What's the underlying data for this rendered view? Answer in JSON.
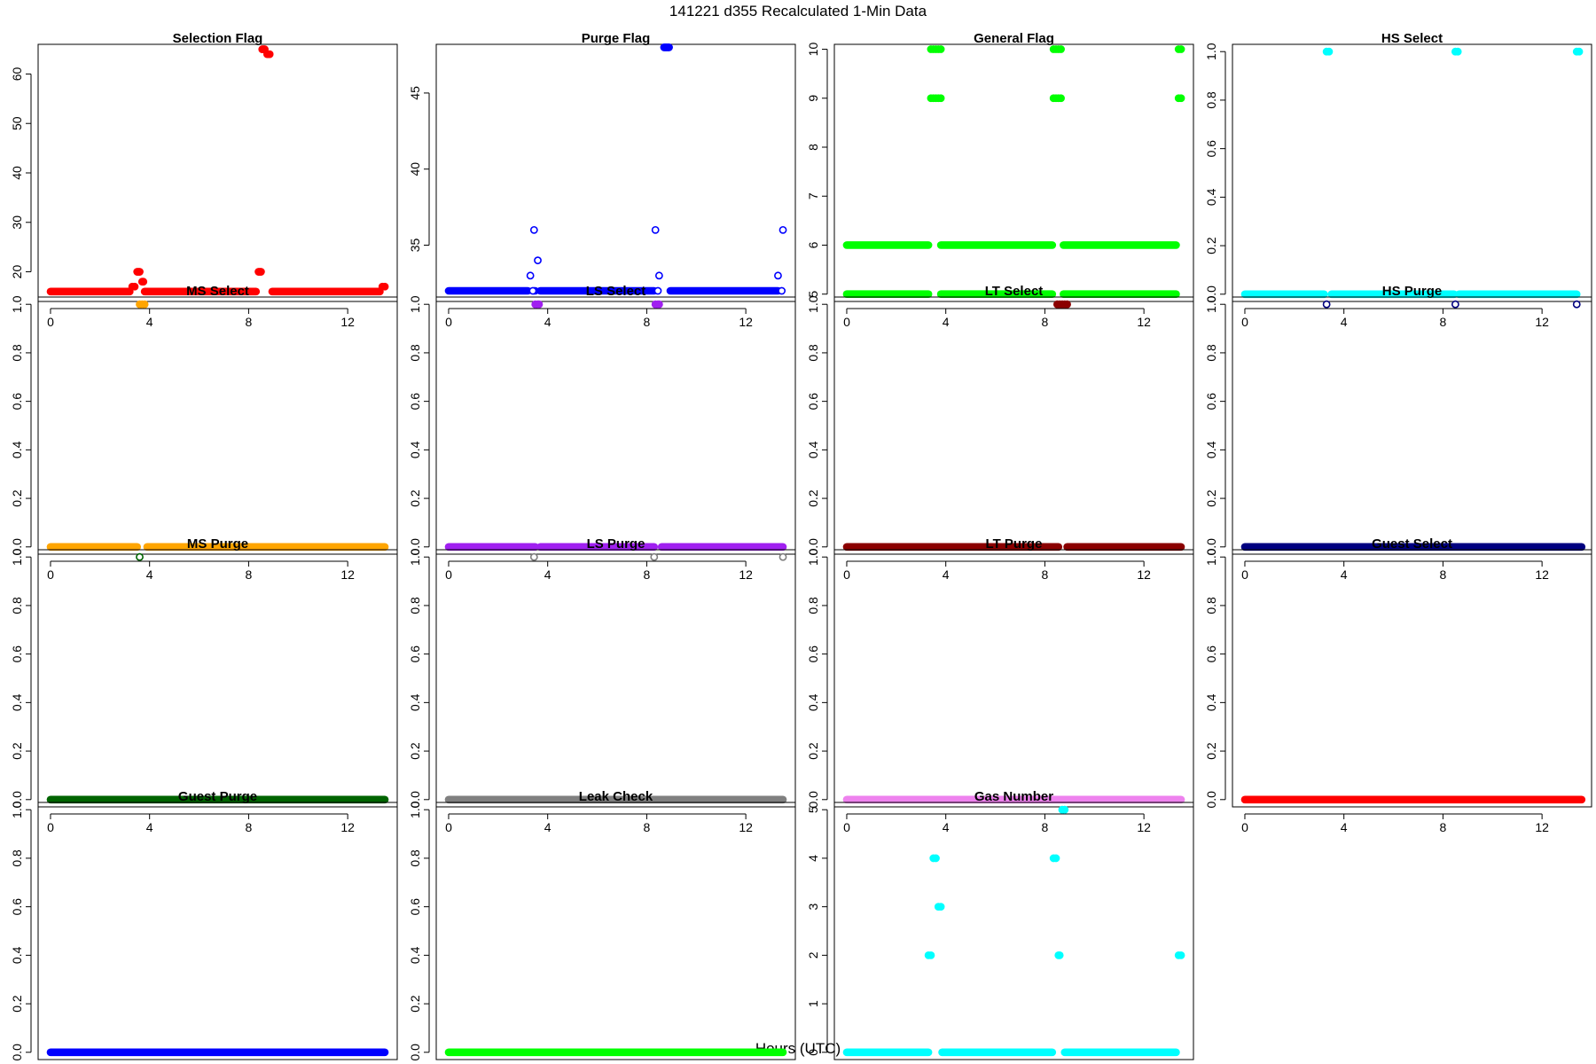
{
  "figure": {
    "suptitle": "141221   d355   Recalculated 1-Min Data",
    "xlabel": "Hours (UTC)"
  },
  "chart_data": [
    {
      "type": "scatter",
      "title": "Selection Flag",
      "color": "#ff0000",
      "fill": true,
      "xlim": [
        -0.5,
        14.0
      ],
      "ylim": [
        14,
        66
      ],
      "xticks": [
        0,
        4,
        8,
        12
      ],
      "yticks": [
        20,
        30,
        40,
        50,
        60
      ],
      "segments": [
        [
          0,
          3.2,
          16
        ],
        [
          3.8,
          8.3,
          16
        ],
        [
          8.95,
          13.3,
          16
        ]
      ],
      "points": [
        [
          3.3,
          17
        ],
        [
          3.4,
          17
        ],
        [
          3.5,
          20
        ],
        [
          3.55,
          20
        ],
        [
          3.6,
          20
        ],
        [
          3.7,
          18
        ],
        [
          3.75,
          18
        ],
        [
          8.4,
          20
        ],
        [
          8.45,
          20
        ],
        [
          8.5,
          20
        ],
        [
          8.55,
          65
        ],
        [
          8.6,
          65
        ],
        [
          8.65,
          65
        ],
        [
          8.75,
          64
        ],
        [
          8.8,
          64
        ],
        [
          8.85,
          64
        ],
        [
          13.4,
          17
        ],
        [
          13.5,
          17
        ]
      ]
    },
    {
      "type": "scatter",
      "title": "Purge Flag",
      "color": "#0000ff",
      "fill": false,
      "xlim": [
        -0.5,
        14.0
      ],
      "ylim": [
        31.3,
        48.2
      ],
      "xticks": [
        0,
        4,
        8,
        12
      ],
      "yticks": [
        35,
        40,
        45
      ],
      "segments": [
        [
          0,
          3.2,
          32
        ],
        [
          3.45,
          3.5,
          32
        ],
        [
          3.7,
          8.3,
          32
        ],
        [
          8.95,
          13.3,
          32
        ]
      ],
      "filled_points": [
        [
          8.7,
          48
        ],
        [
          8.75,
          48
        ],
        [
          8.8,
          48
        ],
        [
          8.85,
          48
        ],
        [
          8.9,
          48
        ]
      ],
      "points": [
        [
          3.3,
          33
        ],
        [
          3.4,
          32
        ],
        [
          3.45,
          36
        ],
        [
          3.6,
          34
        ],
        [
          8.35,
          36
        ],
        [
          8.5,
          33
        ],
        [
          8.45,
          32
        ],
        [
          13.3,
          33
        ],
        [
          13.45,
          32
        ],
        [
          13.5,
          36
        ]
      ]
    },
    {
      "type": "scatter",
      "title": "General Flag",
      "color": "#00ff00",
      "fill": true,
      "xlim": [
        -0.5,
        14.0
      ],
      "ylim": [
        4.85,
        10.1
      ],
      "xticks": [
        0,
        4,
        8,
        12
      ],
      "yticks": [
        5,
        6,
        7,
        8,
        9,
        10
      ],
      "segments": [
        [
          0,
          3.3,
          5
        ],
        [
          0,
          3.3,
          6
        ],
        [
          3.8,
          8.3,
          5
        ],
        [
          3.8,
          8.3,
          6
        ],
        [
          8.75,
          13.3,
          5
        ],
        [
          8.75,
          13.3,
          6
        ]
      ],
      "points": [
        [
          3.4,
          10
        ],
        [
          3.5,
          10
        ],
        [
          3.6,
          10
        ],
        [
          3.7,
          10
        ],
        [
          3.8,
          10
        ],
        [
          3.4,
          9
        ],
        [
          3.5,
          9
        ],
        [
          3.6,
          9
        ],
        [
          3.7,
          9
        ],
        [
          3.8,
          9
        ],
        [
          8.35,
          10
        ],
        [
          8.45,
          10
        ],
        [
          8.55,
          10
        ],
        [
          8.65,
          10
        ],
        [
          8.35,
          9
        ],
        [
          8.45,
          9
        ],
        [
          8.55,
          9
        ],
        [
          8.65,
          9
        ],
        [
          13.4,
          10
        ],
        [
          13.5,
          10
        ],
        [
          13.4,
          9
        ],
        [
          13.5,
          9
        ]
      ]
    },
    {
      "type": "scatter",
      "title": "HS Select",
      "color": "#00ffff",
      "fill": true,
      "xlim": [
        -0.5,
        14.0
      ],
      "ylim": [
        -0.03,
        1.03
      ],
      "xticks": [
        0,
        4,
        8,
        12
      ],
      "yticks": [
        0.0,
        0.2,
        0.4,
        0.6,
        0.8,
        1.0
      ],
      "segments": [
        [
          0,
          3.2,
          0
        ],
        [
          3.5,
          8.45,
          0
        ],
        [
          8.65,
          13.4,
          0
        ]
      ],
      "points": [
        [
          3.3,
          1
        ],
        [
          3.4,
          1
        ],
        [
          8.5,
          1
        ],
        [
          8.6,
          1
        ],
        [
          13.4,
          1
        ],
        [
          13.5,
          1
        ]
      ]
    },
    {
      "type": "scatter",
      "title": "MS Select",
      "color": "#ffa500",
      "fill": true,
      "xlim": [
        -0.5,
        14.0
      ],
      "ylim": [
        -0.03,
        1.03
      ],
      "xticks": [
        0,
        4,
        8,
        12
      ],
      "yticks": [
        0.0,
        0.2,
        0.4,
        0.6,
        0.8,
        1.0
      ],
      "segments": [
        [
          0,
          3.5,
          0
        ],
        [
          3.9,
          13.5,
          0
        ]
      ],
      "points": [
        [
          3.6,
          1
        ],
        [
          3.7,
          1
        ],
        [
          3.8,
          1
        ]
      ]
    },
    {
      "type": "scatter",
      "title": "LS Select",
      "color": "#a020f0",
      "fill": true,
      "xlim": [
        -0.5,
        14.0
      ],
      "ylim": [
        -0.03,
        1.03
      ],
      "xticks": [
        0,
        4,
        8,
        12
      ],
      "yticks": [
        0.0,
        0.2,
        0.4,
        0.6,
        0.8,
        1.0
      ],
      "segments": [
        [
          0,
          3.5,
          0
        ],
        [
          3.7,
          8.3,
          0
        ],
        [
          8.6,
          13.5,
          0
        ]
      ],
      "points": [
        [
          3.5,
          1
        ],
        [
          3.6,
          1
        ],
        [
          3.65,
          1
        ],
        [
          8.35,
          1
        ],
        [
          8.45,
          1
        ],
        [
          8.5,
          1
        ]
      ]
    },
    {
      "type": "scatter",
      "title": "LT Select",
      "color": "#8b0000",
      "fill": true,
      "xlim": [
        -0.5,
        14.0
      ],
      "ylim": [
        -0.03,
        1.03
      ],
      "xticks": [
        0,
        4,
        8,
        12
      ],
      "yticks": [
        0.0,
        0.2,
        0.4,
        0.6,
        0.8,
        1.0
      ],
      "segments": [
        [
          0,
          8.55,
          0
        ],
        [
          8.9,
          13.5,
          0
        ]
      ],
      "points": [
        [
          8.5,
          1
        ],
        [
          8.6,
          1
        ],
        [
          8.7,
          1
        ],
        [
          8.8,
          1
        ],
        [
          8.9,
          1
        ]
      ]
    },
    {
      "type": "scatter",
      "title": "HS Purge",
      "color": "#000080",
      "fill": true,
      "xlim": [
        -0.5,
        14.0
      ],
      "ylim": [
        -0.03,
        1.03
      ],
      "xticks": [
        0,
        4,
        8,
        12
      ],
      "yticks": [
        0.0,
        0.2,
        0.4,
        0.6,
        0.8,
        1.0
      ],
      "segments": [
        [
          0,
          13.6,
          0
        ]
      ],
      "open_points": [
        [
          3.3,
          1
        ],
        [
          8.5,
          1
        ],
        [
          13.4,
          1
        ]
      ],
      "points": []
    },
    {
      "type": "scatter",
      "title": "MS Purge",
      "color": "#006400",
      "fill": true,
      "xlim": [
        -0.5,
        14.0
      ],
      "ylim": [
        -0.03,
        1.03
      ],
      "xticks": [
        0,
        4,
        8,
        12
      ],
      "yticks": [
        0.0,
        0.2,
        0.4,
        0.6,
        0.8,
        1.0
      ],
      "segments": [
        [
          0,
          13.5,
          0
        ]
      ],
      "open_points": [
        [
          3.6,
          1
        ]
      ],
      "points": []
    },
    {
      "type": "scatter",
      "title": "LS Purge",
      "color": "#808080",
      "fill": true,
      "xlim": [
        -0.5,
        14.0
      ],
      "ylim": [
        -0.03,
        1.03
      ],
      "xticks": [
        0,
        4,
        8,
        12
      ],
      "yticks": [
        0.0,
        0.2,
        0.4,
        0.6,
        0.8,
        1.0
      ],
      "segments": [
        [
          0,
          13.5,
          0
        ]
      ],
      "open_points": [
        [
          3.45,
          1
        ],
        [
          8.3,
          1
        ],
        [
          13.5,
          1
        ]
      ],
      "points": []
    },
    {
      "type": "scatter",
      "title": "LT Purge",
      "color": "#ee82ee",
      "fill": true,
      "xlim": [
        -0.5,
        14.0
      ],
      "ylim": [
        -0.03,
        1.03
      ],
      "xticks": [
        0,
        4,
        8,
        12
      ],
      "yticks": [
        0.0,
        0.2,
        0.4,
        0.6,
        0.8,
        1.0
      ],
      "segments": [
        [
          0,
          13.5,
          0
        ]
      ],
      "points": []
    },
    {
      "type": "scatter",
      "title": "Guest Select",
      "color": "#ff0000",
      "fill": true,
      "xlim": [
        -0.5,
        14.0
      ],
      "ylim": [
        -0.03,
        1.03
      ],
      "xticks": [
        0,
        4,
        8,
        12
      ],
      "yticks": [
        0.0,
        0.2,
        0.4,
        0.6,
        0.8,
        1.0
      ],
      "segments": [
        [
          0,
          13.6,
          0
        ]
      ],
      "points": []
    },
    {
      "type": "scatter",
      "title": "Guest Purge",
      "color": "#0000ff",
      "fill": true,
      "xlim": [
        -0.5,
        14.0
      ],
      "ylim": [
        -0.03,
        1.03
      ],
      "xticks": [
        0,
        4,
        8,
        12
      ],
      "yticks": [
        0.0,
        0.2,
        0.4,
        0.6,
        0.8,
        1.0
      ],
      "segments": [
        [
          0,
          13.5,
          0
        ]
      ],
      "points": []
    },
    {
      "type": "scatter",
      "title": "Leak Check",
      "color": "#00ff00",
      "fill": true,
      "xlim": [
        -0.5,
        14.0
      ],
      "ylim": [
        -0.03,
        1.03
      ],
      "xticks": [
        0,
        4,
        8,
        12
      ],
      "yticks": [
        0.0,
        0.2,
        0.4,
        0.6,
        0.8,
        1.0
      ],
      "segments": [
        [
          0,
          13.5,
          0
        ]
      ],
      "points": []
    },
    {
      "type": "scatter",
      "title": "Gas Number",
      "color": "#00ffff",
      "fill": true,
      "xlim": [
        -0.5,
        14.0
      ],
      "ylim": [
        -0.15,
        5.15
      ],
      "xticks": [
        0,
        4,
        8,
        12
      ],
      "yticks": [
        0,
        1,
        2,
        3,
        4,
        5
      ],
      "segments": [
        [
          0,
          3.3,
          0
        ],
        [
          3.85,
          8.3,
          0
        ],
        [
          8.8,
          13.3,
          0
        ]
      ],
      "points": [
        [
          3.3,
          2
        ],
        [
          3.4,
          2
        ],
        [
          3.5,
          4
        ],
        [
          3.6,
          4
        ],
        [
          3.7,
          3
        ],
        [
          3.8,
          3
        ],
        [
          8.35,
          4
        ],
        [
          8.45,
          4
        ],
        [
          8.55,
          2
        ],
        [
          8.6,
          2
        ],
        [
          8.7,
          5
        ],
        [
          8.8,
          5
        ],
        [
          13.4,
          2
        ],
        [
          13.5,
          2
        ]
      ]
    }
  ]
}
